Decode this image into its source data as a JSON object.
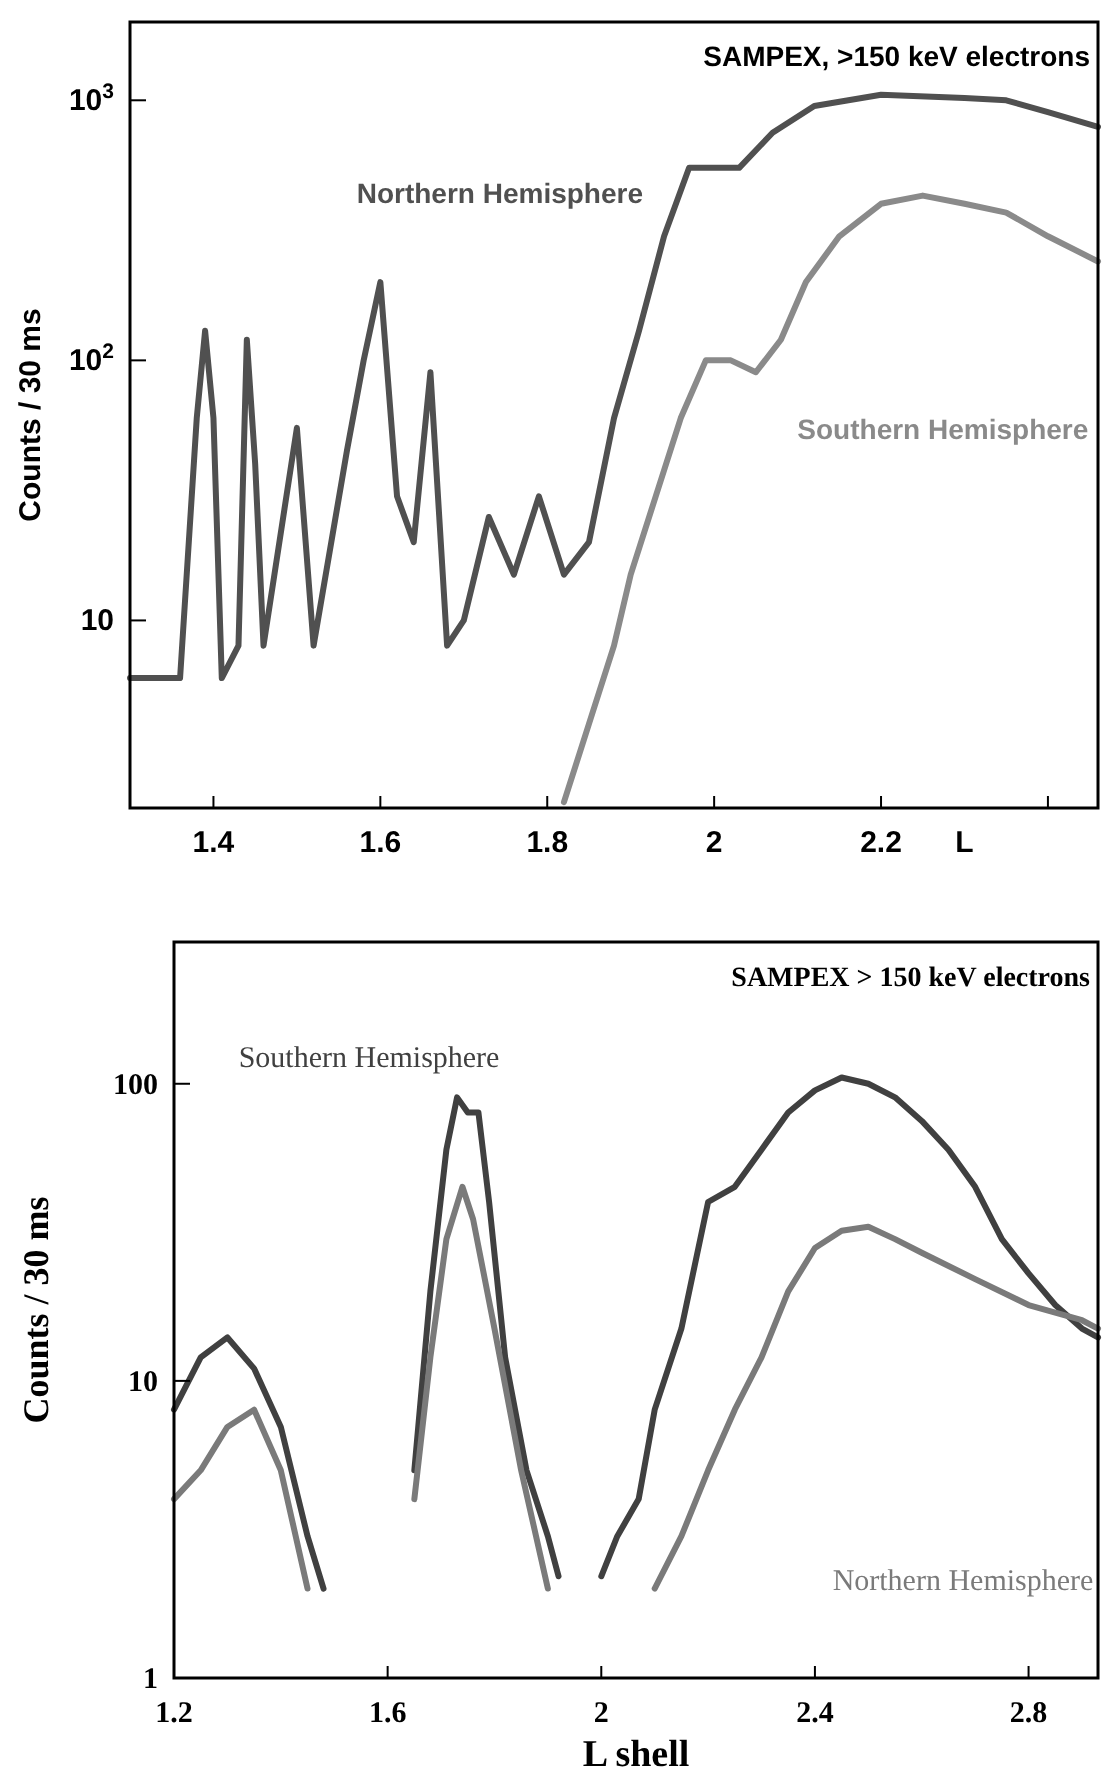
{
  "chart_data": [
    {
      "type": "line",
      "title": "SAMPEX, >150 keV electrons",
      "xlabel": "L",
      "ylabel": "Counts / 30 ms",
      "log": true,
      "xlim": [
        1.3,
        2.46
      ],
      "xticks": [
        1.4,
        1.6,
        1.8,
        2,
        2.2,
        {
          "value": 2.4,
          "label": null
        }
      ],
      "ylim": [
        1.9,
        2000
      ],
      "yticks": [
        10,
        {
          "value": 100,
          "label": "10$^{2}$"
        },
        {
          "value": 1000,
          "label": "10$^{3}$"
        }
      ],
      "series": [
        {
          "name": "Northern Hemisphere",
          "color": "#505050",
          "x": [
            1.3,
            1.36,
            1.38,
            1.39,
            1.4,
            1.41,
            1.43,
            1.44,
            1.45,
            1.46,
            1.5,
            1.52,
            1.56,
            1.58,
            1.6,
            1.62,
            1.64,
            1.66,
            1.68,
            1.7,
            1.73,
            1.76,
            1.79,
            1.82,
            1.85,
            1.88,
            1.91,
            1.94,
            1.97,
            2.0,
            2.03,
            2.07,
            2.12,
            2.2,
            2.3,
            2.35,
            2.4,
            2.46
          ],
          "values": [
            6,
            6,
            60,
            130,
            60,
            6,
            8,
            120,
            40,
            8,
            55,
            8,
            45,
            100,
            200,
            30,
            20,
            90,
            8,
            10,
            25,
            15,
            30,
            15,
            20,
            60,
            130,
            300,
            550,
            550,
            550,
            750,
            950,
            1050,
            1020,
            1000,
            900,
            790
          ]
        },
        {
          "name": "Southern Hemisphere",
          "color": "#8a8a8a",
          "x": [
            1.82,
            1.85,
            1.88,
            1.9,
            1.93,
            1.96,
            1.99,
            2.02,
            2.05,
            2.08,
            2.11,
            2.15,
            2.2,
            2.25,
            2.3,
            2.35,
            2.4,
            2.46
          ],
          "values": [
            2,
            4,
            8,
            15,
            30,
            60,
            100,
            100,
            90,
            120,
            200,
            300,
            400,
            430,
            400,
            370,
            300,
            240
          ]
        }
      ]
    },
    {
      "type": "line",
      "title": "SAMPEX > 150 keV electrons",
      "xlabel": "L shell",
      "ylabel": "Counts / 30 ms",
      "log": true,
      "xlim": [
        1.2,
        2.93
      ],
      "xticks": [
        1.2,
        1.6,
        2,
        2.4,
        2.8
      ],
      "ylim": [
        1,
        300
      ],
      "yticks": [
        1,
        10,
        100
      ],
      "series": [
        {
          "name": "Southern Hemisphere",
          "color": "#404040",
          "x": [
            1.2,
            1.25,
            1.3,
            1.35,
            1.4,
            1.45,
            1.48,
            1.56,
            1.65,
            1.68,
            1.71,
            1.73,
            1.75,
            1.77,
            1.79,
            1.82,
            1.86,
            1.9,
            1.92,
            1.96,
            2.0,
            2.03,
            2.07,
            2.1,
            2.15,
            2.2,
            2.25,
            2.3,
            2.35,
            2.4,
            2.45,
            2.5,
            2.55,
            2.6,
            2.65,
            2.7,
            2.75,
            2.8,
            2.85,
            2.9,
            2.93
          ],
          "values": [
            8,
            12,
            14,
            11,
            7,
            3,
            2,
            null,
            5,
            20,
            60,
            90,
            80,
            80,
            40,
            12,
            5,
            3,
            2.2,
            null,
            2.2,
            3,
            4,
            8,
            15,
            40,
            45,
            60,
            80,
            95,
            105,
            100,
            90,
            75,
            60,
            45,
            30,
            23,
            18,
            15,
            14
          ]
        },
        {
          "name": "Northern Hemisphere",
          "color": "#7a7a7a",
          "x": [
            1.2,
            1.25,
            1.3,
            1.35,
            1.4,
            1.45,
            1.55,
            1.65,
            1.68,
            1.71,
            1.74,
            1.76,
            1.8,
            1.85,
            1.9,
            2.0,
            2.1,
            2.15,
            2.2,
            2.25,
            2.3,
            2.35,
            2.4,
            2.45,
            2.5,
            2.55,
            2.6,
            2.7,
            2.8,
            2.9,
            2.93
          ],
          "values": [
            4,
            5,
            7,
            8,
            5,
            2,
            null,
            4,
            12,
            30,
            45,
            35,
            15,
            5,
            2,
            null,
            2,
            3,
            5,
            8,
            12,
            20,
            28,
            32,
            33,
            30,
            27,
            22,
            18,
            16,
            15
          ]
        }
      ]
    }
  ]
}
